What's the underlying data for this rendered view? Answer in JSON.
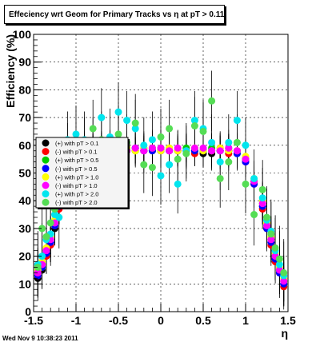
{
  "title": "Effeciency wrt Geom for Primary Tracks vs   η at pT > 0.11",
  "timestamp": "Wed Nov  9 10:38:23 2011",
  "chart_data": {
    "type": "scatter",
    "title": "Effeciency wrt Geom for Primary Tracks vs   η at pT > 0.11",
    "xlabel": "η",
    "ylabel": "Efficiency (%)",
    "xlim": [
      -1.5,
      1.5
    ],
    "ylim": [
      0,
      100
    ],
    "x_ticks": [
      "-1.5",
      "-1",
      "-0.5",
      "0",
      "0.5",
      "1",
      "1.5"
    ],
    "y_ticks": [
      "0",
      "10",
      "20",
      "30",
      "40",
      "50",
      "60",
      "70",
      "80",
      "90",
      "100"
    ],
    "grid": true,
    "legend_position": "left",
    "error_bars": true,
    "series": [
      {
        "name": "(+) with pT > 0.1",
        "color": "#000000",
        "x": [
          -1.45,
          -1.4,
          -1.35,
          -1.3,
          -1.25,
          -1.2,
          -1.1,
          -1.0,
          -0.9,
          -0.8,
          -0.7,
          -0.6,
          -0.5,
          -0.4,
          -0.3,
          -0.2,
          -0.1,
          0.0,
          0.1,
          0.2,
          0.3,
          0.4,
          0.5,
          0.6,
          0.7,
          0.8,
          0.9,
          1.0,
          1.1,
          1.2,
          1.25,
          1.3,
          1.35,
          1.4,
          1.45
        ],
        "y": [
          12,
          15,
          21,
          25,
          30,
          38,
          50,
          56,
          57,
          58,
          58,
          58,
          58,
          59,
          59,
          58,
          58,
          58,
          58,
          58,
          58,
          58,
          57,
          57,
          58,
          58,
          58,
          55,
          47,
          38,
          30,
          25,
          19,
          14,
          10
        ]
      },
      {
        "name": "(-) with pT > 0.1",
        "color": "#ff0000",
        "x": [
          -1.45,
          -1.4,
          -1.35,
          -1.3,
          -1.25,
          -1.2,
          -1.1,
          -1.0,
          -0.9,
          -0.8,
          -0.7,
          -0.6,
          -0.5,
          -0.4,
          -0.3,
          -0.2,
          -0.1,
          0.0,
          0.1,
          0.2,
          0.3,
          0.4,
          0.5,
          0.6,
          0.7,
          0.8,
          0.9,
          1.0,
          1.1,
          1.2,
          1.25,
          1.3,
          1.35,
          1.4,
          1.45
        ],
        "y": [
          13,
          17,
          20,
          24,
          31,
          37,
          51,
          56,
          58,
          57,
          59,
          58,
          58,
          58,
          58,
          58,
          59,
          58,
          58,
          58,
          58,
          57,
          58,
          58,
          59,
          57,
          58,
          54,
          46,
          37,
          30,
          24,
          18,
          14,
          9
        ]
      },
      {
        "name": "(+) with pT > 0.5",
        "color": "#00cc00",
        "x": [
          -1.45,
          -1.4,
          -1.35,
          -1.3,
          -1.25,
          -1.2,
          -1.1,
          -1.0,
          -0.9,
          -0.8,
          -0.7,
          -0.6,
          -0.5,
          -0.4,
          -0.3,
          -0.2,
          -0.1,
          0.0,
          0.1,
          0.2,
          0.3,
          0.4,
          0.5,
          0.6,
          0.7,
          0.8,
          0.9,
          1.0,
          1.1,
          1.2,
          1.25,
          1.3,
          1.35,
          1.4,
          1.45
        ],
        "y": [
          14,
          16,
          22,
          26,
          32,
          39,
          52,
          57,
          58,
          59,
          58,
          59,
          59,
          58,
          58,
          59,
          58,
          59,
          59,
          58,
          59,
          58,
          58,
          59,
          58,
          59,
          57,
          55,
          47,
          39,
          31,
          26,
          20,
          15,
          11
        ]
      },
      {
        "name": "(-) with pT > 0.5",
        "color": "#0000ff",
        "x": [
          -1.45,
          -1.4,
          -1.35,
          -1.3,
          -1.25,
          -1.2,
          -1.1,
          -1.0,
          -0.9,
          -0.8,
          -0.7,
          -0.6,
          -0.5,
          -0.4,
          -0.3,
          -0.2,
          -0.1,
          0.0,
          0.1,
          0.2,
          0.3,
          0.4,
          0.5,
          0.6,
          0.7,
          0.8,
          0.9,
          1.0,
          1.1,
          1.2,
          1.25,
          1.3,
          1.35,
          1.4,
          1.45
        ],
        "y": [
          13,
          16,
          21,
          25,
          31,
          38,
          51,
          56,
          57,
          58,
          58,
          58,
          58,
          58,
          59,
          58,
          58,
          58,
          58,
          58,
          58,
          58,
          58,
          58,
          58,
          58,
          57,
          54,
          46,
          38,
          30,
          25,
          19,
          14,
          10
        ]
      },
      {
        "name": "(+) with pT > 1.0",
        "color": "#ffff00",
        "x": [
          -1.45,
          -1.4,
          -1.35,
          -1.3,
          -1.25,
          -1.2,
          -1.1,
          -1.0,
          -0.9,
          -0.8,
          -0.7,
          -0.6,
          -0.5,
          -0.4,
          -0.3,
          -0.2,
          -0.1,
          0.0,
          0.1,
          0.2,
          0.3,
          0.4,
          0.5,
          0.6,
          0.7,
          0.8,
          0.9,
          1.0,
          1.1,
          1.2,
          1.25,
          1.3,
          1.35,
          1.4,
          1.45
        ],
        "y": [
          15,
          18,
          23,
          27,
          33,
          40,
          52,
          57,
          59,
          58,
          59,
          58,
          58,
          59,
          58,
          59,
          59,
          58,
          59,
          58,
          58,
          59,
          58,
          58,
          59,
          58,
          58,
          56,
          48,
          40,
          32,
          27,
          21,
          16,
          12
        ]
      },
      {
        "name": "(-) with pT > 1.0",
        "color": "#ff00ff",
        "x": [
          -1.45,
          -1.4,
          -1.35,
          -1.3,
          -1.25,
          -1.2,
          -1.1,
          -1.0,
          -0.9,
          -0.8,
          -0.7,
          -0.6,
          -0.5,
          -0.4,
          -0.3,
          -0.2,
          -0.1,
          0.0,
          0.1,
          0.2,
          0.3,
          0.4,
          0.5,
          0.6,
          0.7,
          0.8,
          0.9,
          1.0,
          1.1,
          1.2,
          1.25,
          1.3,
          1.35,
          1.4,
          1.45
        ],
        "y": [
          14,
          17,
          22,
          26,
          32,
          39,
          51,
          57,
          58,
          59,
          58,
          59,
          59,
          58,
          59,
          58,
          59,
          59,
          58,
          59,
          58,
          59,
          59,
          58,
          58,
          59,
          58,
          55,
          47,
          39,
          31,
          26,
          20,
          15,
          11
        ]
      },
      {
        "name": "(+) with pT > 2.0",
        "color": "#00e5ee",
        "x": [
          -1.45,
          -1.4,
          -1.35,
          -1.3,
          -1.25,
          -1.2,
          -1.1,
          -1.0,
          -0.9,
          -0.8,
          -0.7,
          -0.6,
          -0.5,
          -0.4,
          -0.3,
          -0.2,
          -0.1,
          0.0,
          0.1,
          0.2,
          0.3,
          0.4,
          0.5,
          0.6,
          0.7,
          0.8,
          0.9,
          1.0,
          1.1,
          1.2,
          1.25,
          1.3,
          1.35,
          1.4,
          1.45
        ],
        "y": [
          17,
          20,
          26,
          28,
          35,
          34,
          62,
          64,
          62,
          60,
          70,
          63,
          72,
          69,
          66,
          60,
          62,
          49,
          53,
          46,
          58,
          69,
          66,
          61,
          54,
          61,
          69,
          60,
          48,
          41,
          33,
          29,
          22,
          17,
          13
        ]
      },
      {
        "name": "(-) with pT > 2.0",
        "color": "#55dd55",
        "x": [
          -1.45,
          -1.4,
          -1.35,
          -1.3,
          -1.25,
          -1.2,
          -1.1,
          -1.0,
          -0.9,
          -0.8,
          -0.7,
          -0.6,
          -0.5,
          -0.4,
          -0.3,
          -0.2,
          -0.1,
          0.0,
          0.1,
          0.2,
          0.3,
          0.4,
          0.5,
          0.6,
          0.7,
          0.8,
          0.9,
          1.0,
          1.1,
          1.2,
          1.25,
          1.3,
          1.35,
          1.4,
          1.45
        ],
        "y": [
          16,
          30,
          27,
          32,
          37,
          44,
          58,
          54,
          60,
          66,
          62,
          55,
          64,
          61,
          68,
          53,
          52,
          63,
          66,
          55,
          57,
          67,
          65,
          76,
          48,
          54,
          61,
          46,
          35,
          44,
          34,
          28,
          23,
          19,
          14
        ]
      }
    ]
  }
}
